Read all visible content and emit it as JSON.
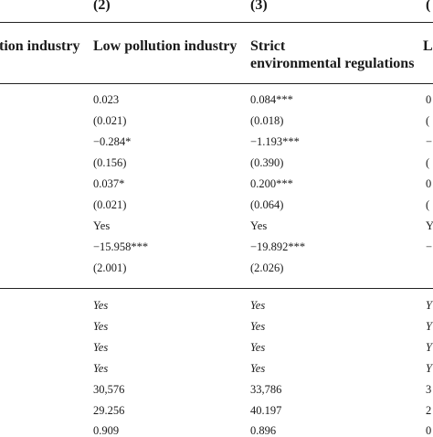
{
  "headers": {
    "col1_label": "tion industry",
    "col2_num": "(2)",
    "col2_label": "Low pollution industry",
    "col3_num": "(3)",
    "col3_label_line1": "Strict",
    "col3_label_line2": "environmental regulations",
    "col4_num": "(",
    "col4_label": "L"
  },
  "col2_values": [
    "0.023",
    "(0.021)",
    "−0.284*",
    "(0.156)",
    "0.037*",
    "(0.021)",
    "Yes",
    "−15.958***",
    "(2.001)",
    "Yes",
    "Yes",
    "Yes",
    "Yes",
    "30,576",
    "29.256",
    "0.909"
  ],
  "col3_values": [
    "0.084***",
    "(0.018)",
    "−1.193***",
    "(0.390)",
    "0.200***",
    "(0.064)",
    "Yes",
    "−19.892***",
    "(2.026)",
    "Yes",
    "Yes",
    "Yes",
    "Yes",
    "33,786",
    "40.197",
    "0.896"
  ],
  "col4_values": [
    "0",
    "(",
    "−",
    "(",
    "0",
    "(",
    "Y",
    "−",
    "",
    "Y",
    "Y",
    "Y",
    "Y",
    "3",
    "2",
    "0"
  ]
}
